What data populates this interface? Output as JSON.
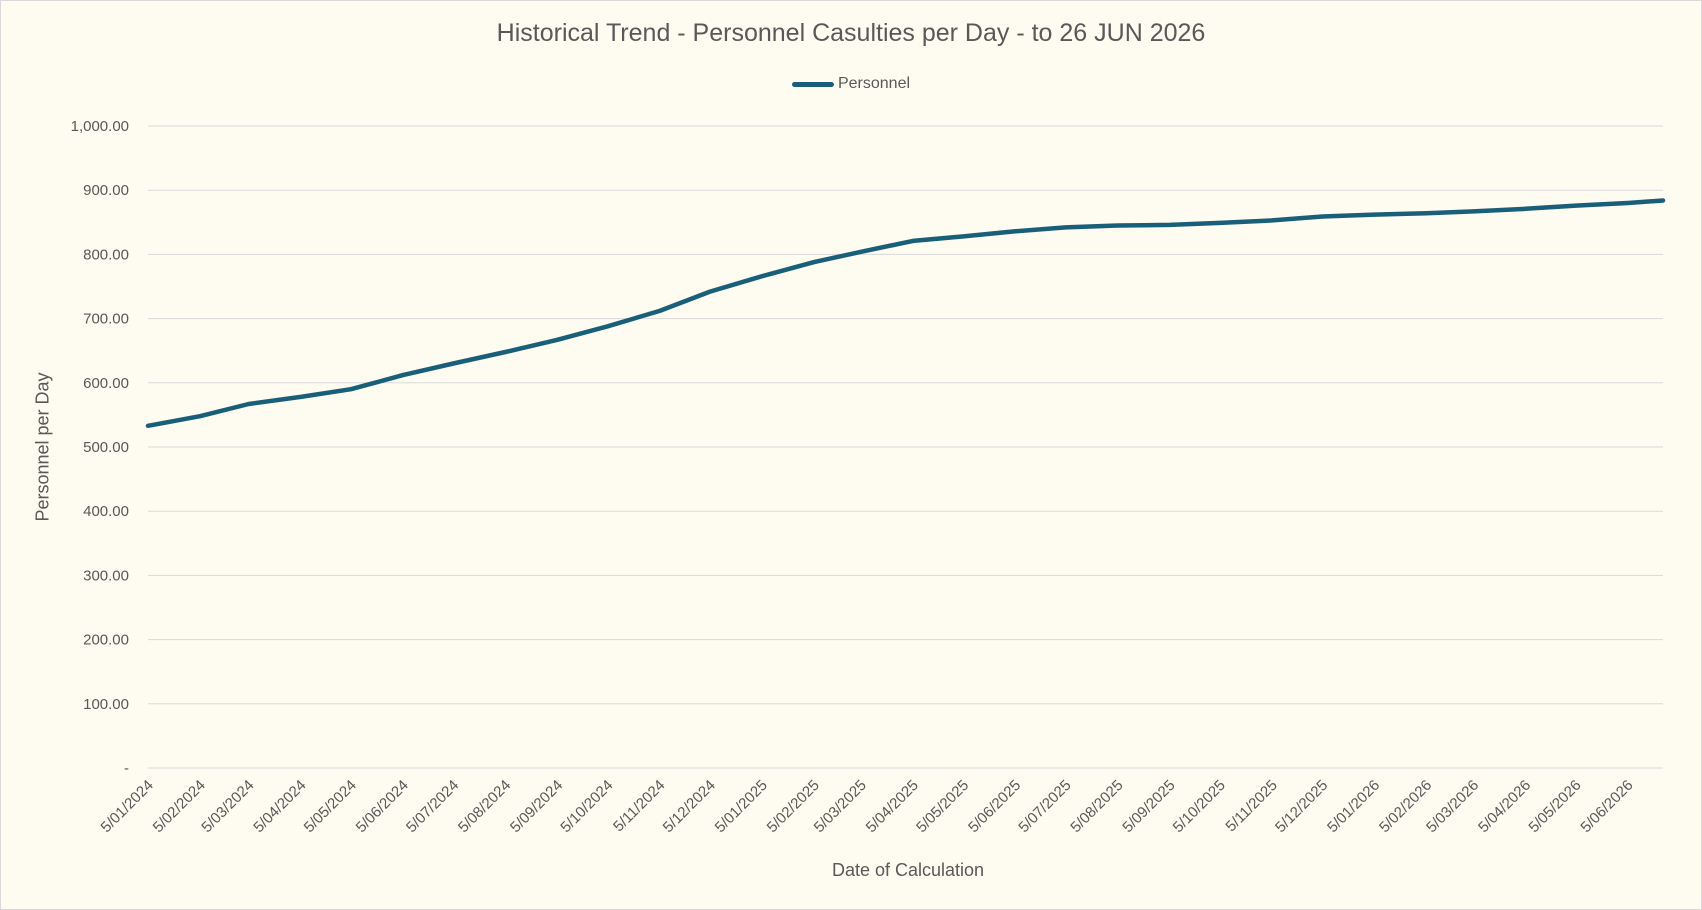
{
  "colors": {
    "background": "#fefbf0",
    "gridline": "#d9d9d9",
    "text": "#595959",
    "series": "#1a5f7a"
  },
  "chart_data": {
    "type": "line",
    "title": "Historical Trend - Personnel Casulties per Day - to 26 JUN 2026",
    "xlabel": "Date of Calculation",
    "ylabel": "Personnel per Day",
    "legend_position": "top",
    "grid": true,
    "ylim": [
      0,
      1000
    ],
    "x_range": [
      "5/01/2024",
      "26/06/2026"
    ],
    "y_ticks": [
      {
        "value": 0,
        "label": "-"
      },
      {
        "value": 100,
        "label": "100.00"
      },
      {
        "value": 200,
        "label": "200.00"
      },
      {
        "value": 300,
        "label": "300.00"
      },
      {
        "value": 400,
        "label": "400.00"
      },
      {
        "value": 500,
        "label": "500.00"
      },
      {
        "value": 600,
        "label": "600.00"
      },
      {
        "value": 700,
        "label": "700.00"
      },
      {
        "value": 800,
        "label": "800.00"
      },
      {
        "value": 900,
        "label": "900.00"
      },
      {
        "value": 1000,
        "label": "1,000.00"
      }
    ],
    "x_tick_labels": [
      "5/01/2024",
      "5/02/2024",
      "5/03/2024",
      "5/04/2024",
      "5/05/2024",
      "5/06/2024",
      "5/07/2024",
      "5/08/2024",
      "5/09/2024",
      "5/10/2024",
      "5/11/2024",
      "5/12/2024",
      "5/01/2025",
      "5/02/2025",
      "5/03/2025",
      "5/04/2025",
      "5/05/2025",
      "5/06/2025",
      "5/07/2025",
      "5/08/2025",
      "5/09/2025",
      "5/10/2025",
      "5/11/2025",
      "5/12/2025",
      "5/01/2026",
      "5/02/2026",
      "5/03/2026",
      "5/04/2026",
      "5/05/2026",
      "5/06/2026"
    ],
    "series": [
      {
        "name": "Personnel",
        "x": [
          "5/01/2024",
          "5/02/2024",
          "5/03/2024",
          "5/04/2024",
          "5/05/2024",
          "5/06/2024",
          "5/07/2024",
          "5/08/2024",
          "5/09/2024",
          "5/10/2024",
          "5/11/2024",
          "5/12/2024",
          "5/01/2025",
          "5/02/2025",
          "5/03/2025",
          "5/04/2025",
          "5/05/2025",
          "5/06/2025",
          "5/07/2025",
          "5/08/2025",
          "5/09/2025",
          "5/10/2025",
          "5/11/2025",
          "5/12/2025",
          "5/01/2026",
          "5/02/2026",
          "5/03/2026",
          "5/04/2026",
          "5/05/2026",
          "5/06/2026",
          "26/06/2026"
        ],
        "values": [
          533,
          548,
          567,
          578,
          590,
          612,
          630,
          648,
          667,
          688,
          712,
          742,
          766,
          788,
          804,
          821,
          828,
          836,
          842,
          845,
          846,
          849,
          853,
          859,
          862,
          864,
          867,
          871,
          876,
          880,
          884
        ]
      }
    ]
  }
}
